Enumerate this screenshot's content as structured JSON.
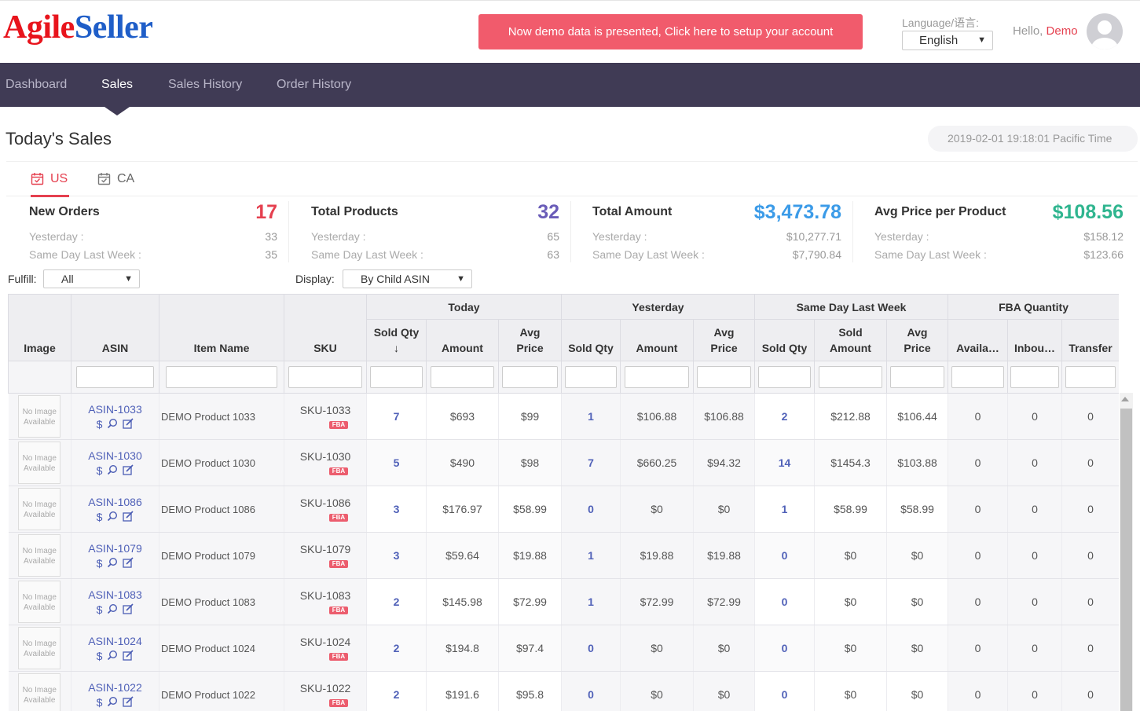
{
  "header": {
    "logo_part1": "Agile",
    "logo_part2": "Seller",
    "demo_banner": "Now demo data is presented, Click here to setup your account",
    "language_label": "Language/语言:",
    "language_value": "English",
    "hello_text": "Hello,",
    "user_name": "Demo"
  },
  "nav": {
    "items": [
      "Dashboard",
      "Sales",
      "Sales History",
      "Order History"
    ],
    "active": "Sales"
  },
  "page": {
    "title": "Today's Sales",
    "timestamp": "2019-02-01 19:18:01 Pacific Time"
  },
  "tabs": [
    "US",
    "CA"
  ],
  "stats": [
    {
      "title": "New Orders",
      "value": "17",
      "yesterday_label": "Yesterday :",
      "yesterday": "33",
      "lastweek_label": "Same Day Last Week :",
      "lastweek": "35",
      "color": "#e5404f"
    },
    {
      "title": "Total Products",
      "value": "32",
      "yesterday_label": "Yesterday :",
      "yesterday": "65",
      "lastweek_label": "Same Day Last Week :",
      "lastweek": "63",
      "color": "#6a5cb8"
    },
    {
      "title": "Total Amount",
      "value": "$3,473.78",
      "yesterday_label": "Yesterday :",
      "yesterday": "$10,277.71",
      "lastweek_label": "Same Day Last Week :",
      "lastweek": "$7,790.84",
      "color": "#3b9be8"
    },
    {
      "title": "Avg Price per Product",
      "value": "$108.56",
      "yesterday_label": "Yesterday :",
      "yesterday": "$158.12",
      "lastweek_label": "Same Day Last Week :",
      "lastweek": "$123.66",
      "color": "#2fb58f"
    }
  ],
  "filters": {
    "fulfill_label": "Fulfill:",
    "fulfill_value": "All",
    "display_label": "Display:",
    "display_value": "By Child ASIN"
  },
  "table": {
    "groups": {
      "today": "Today",
      "yesterday": "Yesterday",
      "lastweek": "Same Day Last Week",
      "fba": "FBA Quantity"
    },
    "headers": {
      "image": "Image",
      "asin": "ASIN",
      "item_name": "Item Name",
      "sku": "SKU",
      "sold_qty": "Sold Qty",
      "sort_arrow": "↓",
      "amount": "Amount",
      "avg_price_1": "Avg",
      "avg_price_2": "Price",
      "sold_amount_1": "Sold",
      "sold_amount_2": "Amount",
      "available": "Availa…",
      "inbound": "Inbou…",
      "transfer": "Transfer"
    },
    "no_image": "No Image Available",
    "fba_badge": "FBA",
    "rows": [
      {
        "asin": "ASIN-1033",
        "name": "DEMO Product 1033",
        "sku": "SKU-1033",
        "t_qty": "7",
        "t_amt": "$693",
        "t_avg": "$99",
        "y_qty": "1",
        "y_amt": "$106.88",
        "y_avg": "$106.88",
        "w_qty": "2",
        "w_amt": "$212.88",
        "w_avg": "$106.44",
        "avail": "0",
        "inb": "0",
        "trans": "0"
      },
      {
        "asin": "ASIN-1030",
        "name": "DEMO Product 1030",
        "sku": "SKU-1030",
        "t_qty": "5",
        "t_amt": "$490",
        "t_avg": "$98",
        "y_qty": "7",
        "y_amt": "$660.25",
        "y_avg": "$94.32",
        "w_qty": "14",
        "w_amt": "$1454.3",
        "w_avg": "$103.88",
        "avail": "0",
        "inb": "0",
        "trans": "0"
      },
      {
        "asin": "ASIN-1086",
        "name": "DEMO Product 1086",
        "sku": "SKU-1086",
        "t_qty": "3",
        "t_amt": "$176.97",
        "t_avg": "$58.99",
        "y_qty": "0",
        "y_amt": "$0",
        "y_avg": "$0",
        "w_qty": "1",
        "w_amt": "$58.99",
        "w_avg": "$58.99",
        "avail": "0",
        "inb": "0",
        "trans": "0"
      },
      {
        "asin": "ASIN-1079",
        "name": "DEMO Product 1079",
        "sku": "SKU-1079",
        "t_qty": "3",
        "t_amt": "$59.64",
        "t_avg": "$19.88",
        "y_qty": "1",
        "y_amt": "$19.88",
        "y_avg": "$19.88",
        "w_qty": "0",
        "w_amt": "$0",
        "w_avg": "$0",
        "avail": "0",
        "inb": "0",
        "trans": "0"
      },
      {
        "asin": "ASIN-1083",
        "name": "DEMO Product 1083",
        "sku": "SKU-1083",
        "t_qty": "2",
        "t_amt": "$145.98",
        "t_avg": "$72.99",
        "y_qty": "1",
        "y_amt": "$72.99",
        "y_avg": "$72.99",
        "w_qty": "0",
        "w_amt": "$0",
        "w_avg": "$0",
        "avail": "0",
        "inb": "0",
        "trans": "0"
      },
      {
        "asin": "ASIN-1024",
        "name": "DEMO Product 1024",
        "sku": "SKU-1024",
        "t_qty": "2",
        "t_amt": "$194.8",
        "t_avg": "$97.4",
        "y_qty": "0",
        "y_amt": "$0",
        "y_avg": "$0",
        "w_qty": "0",
        "w_amt": "$0",
        "w_avg": "$0",
        "avail": "0",
        "inb": "0",
        "trans": "0"
      },
      {
        "asin": "ASIN-1022",
        "name": "DEMO Product 1022",
        "sku": "SKU-1022",
        "t_qty": "2",
        "t_amt": "$191.6",
        "t_avg": "$95.8",
        "y_qty": "0",
        "y_amt": "$0",
        "y_avg": "$0",
        "w_qty": "0",
        "w_amt": "$0",
        "w_avg": "$0",
        "avail": "0",
        "inb": "0",
        "trans": "0"
      }
    ]
  }
}
